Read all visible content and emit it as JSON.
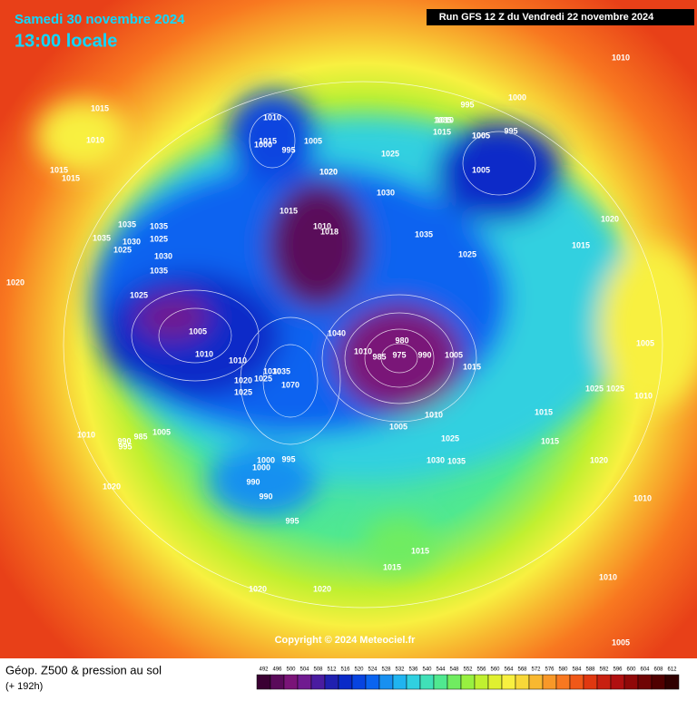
{
  "header": {
    "date": "Samedi 30 novembre 2024",
    "time": "13:00 locale",
    "run": "Run GFS 12 Z du Vendredi 22 novembre 2024"
  },
  "map": {
    "copyright": "Copyright © 2024 Meteociel.fr",
    "pressure_labels": [
      1015,
      1010,
      1015,
      1015,
      1035,
      1035,
      1035,
      1025,
      1030,
      1025,
      1030,
      1035,
      1025,
      1020,
      1005,
      1010,
      1010,
      985,
      990,
      995,
      1005,
      1010,
      1020,
      1015,
      1010,
      1018,
      1025,
      1030,
      1035,
      1000,
      1000,
      995,
      1010,
      1015,
      1000,
      995,
      1005,
      1020,
      1025,
      1030,
      1035,
      1015,
      1035,
      1025,
      1005,
      1040,
      1010,
      980,
      975,
      985,
      990,
      1005,
      1015,
      1010,
      1025,
      1030,
      1035,
      1070,
      1025,
      1010,
      995,
      1005,
      1020,
      1000,
      995,
      990,
      990,
      995,
      1015,
      1005,
      1015,
      1020,
      1015,
      1015,
      1010,
      1005,
      1025,
      1025,
      1010,
      1020,
      1015,
      1010,
      1010,
      1020,
      1020,
      1020,
      1005,
      1005
    ]
  },
  "footer": {
    "title": "Géop. Z500 & pression au sol",
    "lead": "(+ 192h)",
    "colorbar": {
      "ticks": [
        492,
        496,
        500,
        504,
        508,
        512,
        516,
        520,
        524,
        528,
        532,
        536,
        540,
        544,
        548,
        552,
        556,
        560,
        564,
        568,
        572,
        576,
        580,
        584,
        588,
        592,
        596,
        600,
        604,
        608,
        612
      ],
      "colors": [
        "#3a0032",
        "#5a0a5a",
        "#7a1478",
        "#701a90",
        "#4a1ca0",
        "#2020b0",
        "#0a2ac8",
        "#0844e0",
        "#0a64f0",
        "#1890f0",
        "#20b4f0",
        "#30d0e0",
        "#40e0b8",
        "#50e890",
        "#70ec60",
        "#98f040",
        "#c0f030",
        "#e0f030",
        "#f8f040",
        "#f8d838",
        "#f8b830",
        "#f89828",
        "#f87820",
        "#f05818",
        "#e03810",
        "#c82010",
        "#b01010",
        "#900808",
        "#700404",
        "#500000",
        "#300000"
      ]
    }
  }
}
